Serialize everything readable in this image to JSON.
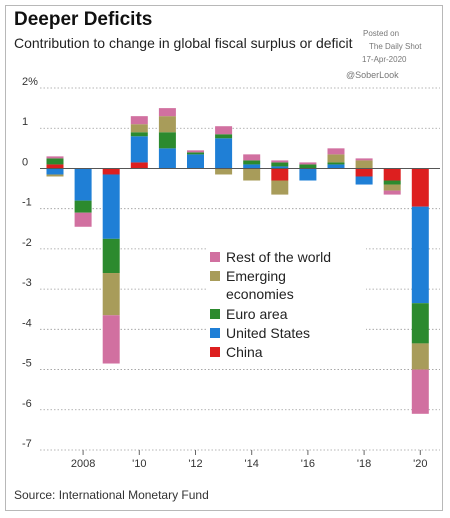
{
  "header": {
    "title": "Deeper Deficits",
    "subtitle": "Contribution to change in global fiscal surplus or deficit"
  },
  "watermark": {
    "line1": "Posted on",
    "line2": "The Daily Shot",
    "line3": "17-Apr-2020",
    "handle": "@SoberLook"
  },
  "footer": {
    "source": "Source: International Monetary Fund"
  },
  "colors": {
    "rest": "#d170a0",
    "emerging": "#a89c5a",
    "euro": "#2c8a2e",
    "us": "#1f7fd6",
    "china": "#dd1f1f",
    "gridline": "#9c9c9c",
    "zeroline": "#555555"
  },
  "chart_data": {
    "type": "bar",
    "stacked": true,
    "title": "Deeper Deficits",
    "subtitle": "Contribution to change in global fiscal surplus or deficit",
    "ylim": [
      -7,
      2
    ],
    "y_ticks": [
      2,
      1,
      0,
      -1,
      -2,
      -3,
      -4,
      -5,
      -6,
      -7
    ],
    "y_tick_labels": [
      "2%",
      "1",
      "0",
      "-1",
      "-2",
      "-3",
      "-4",
      "-5",
      "-6",
      "-7"
    ],
    "x_ticks": [
      2008,
      2010,
      2012,
      2014,
      2016,
      2018,
      2020
    ],
    "x_tick_labels": [
      "2008",
      "'10",
      "'12",
      "'14",
      "'16",
      "'18",
      "'20"
    ],
    "grid": true,
    "legend_position": "center",
    "categories": [
      2007,
      2008,
      2009,
      2010,
      2011,
      2012,
      2013,
      2014,
      2015,
      2016,
      2017,
      2018,
      2019,
      2020
    ],
    "series": [
      {
        "name": "China",
        "key": "china",
        "values": [
          0.1,
          0.0,
          -0.15,
          0.15,
          0.0,
          0.0,
          0.0,
          0.0,
          -0.3,
          0.0,
          0.0,
          -0.2,
          -0.3,
          -0.95
        ]
      },
      {
        "name": "United States",
        "key": "us",
        "values": [
          -0.15,
          -0.8,
          -1.6,
          0.65,
          0.5,
          0.35,
          0.75,
          0.1,
          0.05,
          -0.3,
          0.1,
          -0.2,
          0.0,
          -2.4
        ]
      },
      {
        "name": "Euro area",
        "key": "euro",
        "values": [
          0.15,
          -0.3,
          -0.85,
          0.1,
          0.4,
          0.05,
          0.1,
          0.1,
          0.1,
          0.1,
          0.05,
          0.0,
          -0.1,
          -1.0
        ]
      },
      {
        "name": "Emerging economies",
        "key": "emerging",
        "values": [
          -0.05,
          0.0,
          -1.05,
          0.2,
          0.4,
          0.0,
          -0.15,
          -0.3,
          -0.35,
          0.0,
          0.2,
          0.2,
          -0.15,
          -0.65
        ]
      },
      {
        "name": "Rest of the world",
        "key": "rest",
        "values": [
          0.05,
          -0.35,
          -1.2,
          0.2,
          0.2,
          0.05,
          0.2,
          0.15,
          0.05,
          0.05,
          0.15,
          0.05,
          -0.1,
          -1.1
        ]
      }
    ],
    "legend_order": [
      "Rest of the world",
      "Emerging\neconomies",
      "Euro area",
      "United States",
      "China"
    ]
  }
}
